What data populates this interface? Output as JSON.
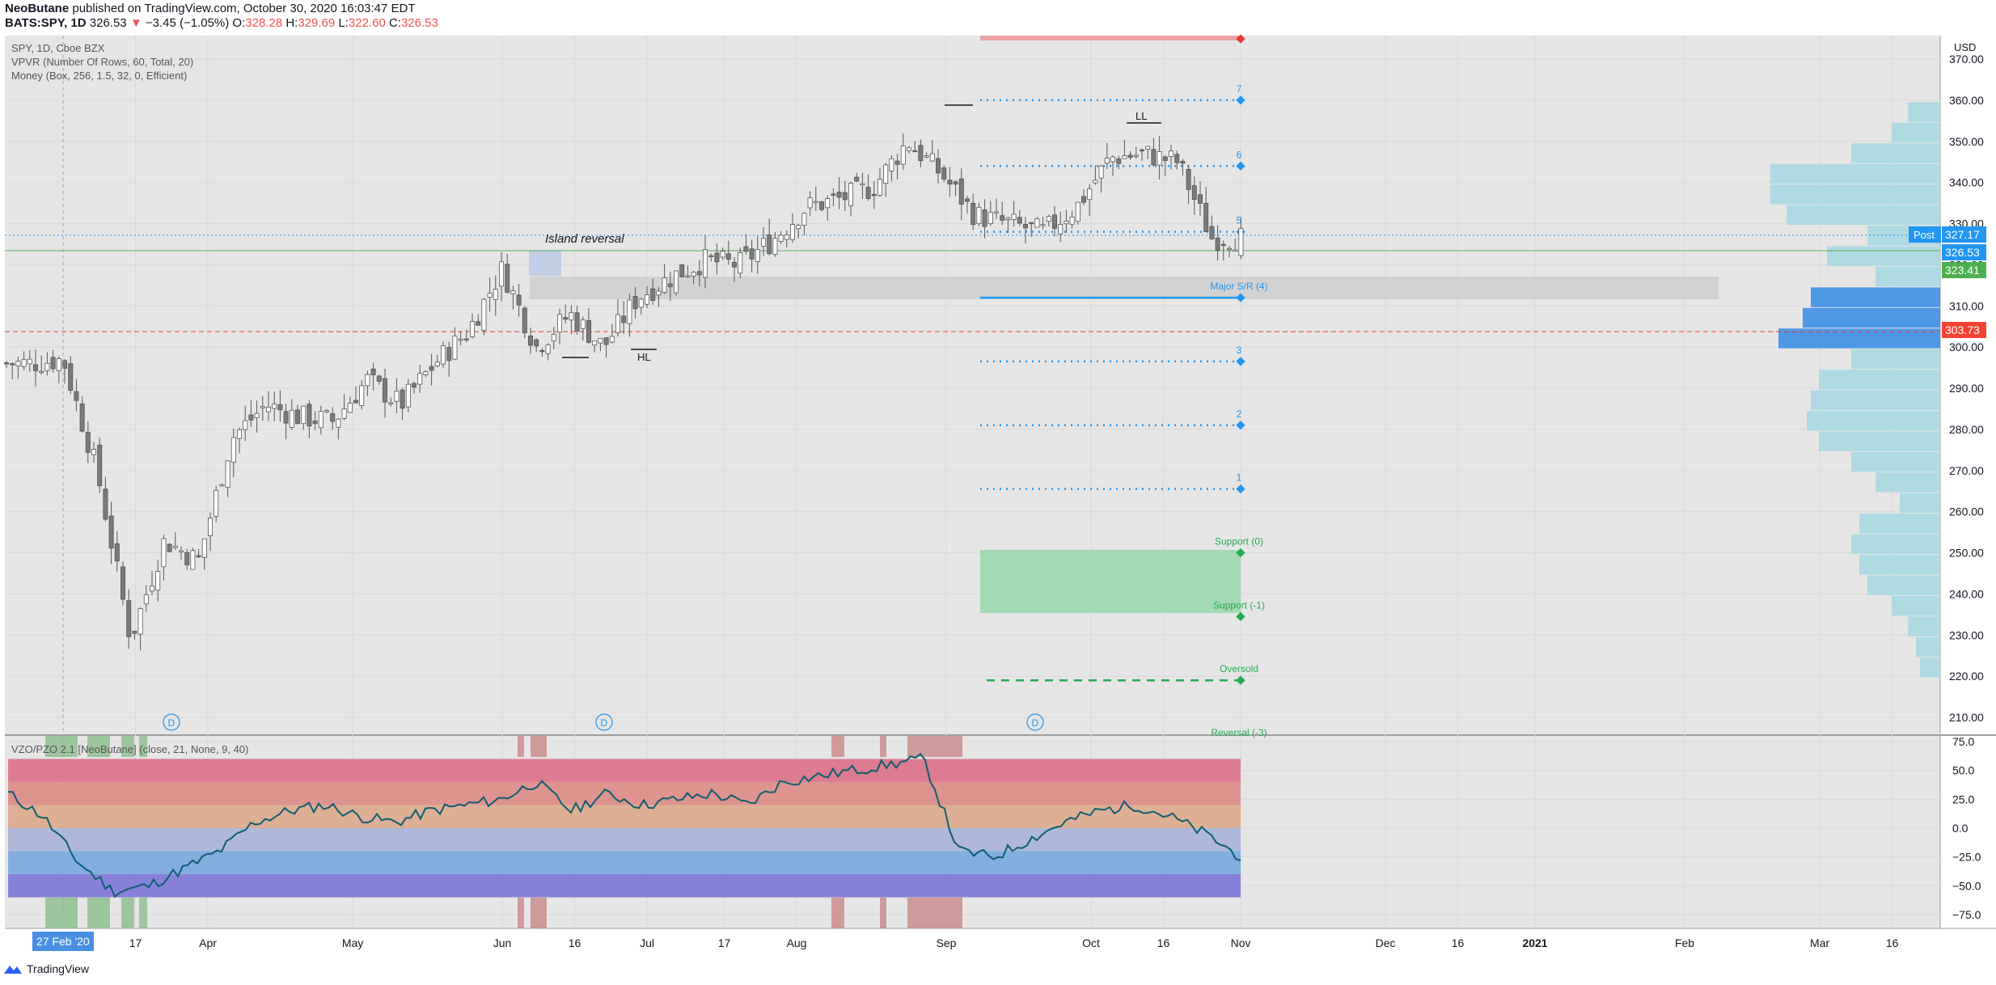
{
  "header": {
    "publisher": "NeoButane",
    "published_text": "published on TradingView.com, October 30, 2020 16:03:47 EDT",
    "symbol": "BATS:SPY, 1D",
    "last": "326.53",
    "change": "−3.45 (−1.05%)",
    "o_label": "O:",
    "o_value": "328.28",
    "h_label": "H:",
    "h_value": "329.69",
    "l_label": "L:",
    "l_value": "322.60",
    "c_label": "C:",
    "c_value": "326.53"
  },
  "legend": {
    "line1": "SPY, 1D, Cboe BZX",
    "line2": "VPVR (Number Of Rows, 60, Total, 20)",
    "line3": "Money (Box, 256, 1.5, 32, 0, Efficient)",
    "osc": "VZO/PZO 2.1 [NeoButane] (close, 21, None, 9, 40)"
  },
  "price_axis": {
    "currency": "USD",
    "ticks": [
      "370.00",
      "360.00",
      "350.00",
      "340.00",
      "330.00",
      "320.00",
      "310.00",
      "300.00",
      "290.00",
      "280.00",
      "270.00",
      "260.00",
      "250.00",
      "240.00",
      "230.00",
      "220.00",
      "210.00"
    ]
  },
  "osc_axis": {
    "ticks": [
      "75.0",
      "50.0",
      "25.0",
      "0.0",
      "−25.0",
      "−50.0",
      "−75.0"
    ]
  },
  "time_axis": {
    "labels": [
      "Mar",
      "17",
      "Apr",
      "May",
      "Jun",
      "16",
      "Jul",
      "17",
      "Aug",
      "Sep",
      "Oct",
      "16",
      "Nov",
      "Dec",
      "16",
      "2021",
      "Feb",
      "Mar",
      "16"
    ],
    "cursor_label": "27 Feb '20"
  },
  "price_labels": {
    "post_label": "Post",
    "post_value": "327.17",
    "last_value": "326.53",
    "support_value": "323.41",
    "red_value": "303.73"
  },
  "annotations": {
    "island": "Island reversal",
    "ll": "LL",
    "hl": "HL",
    "major_sr": "Major S/R (4)",
    "support0": "Support (0)",
    "support_m1": "Support (-1)",
    "oversold": "Oversold",
    "reversal": "Reversal (-3)",
    "level_numbers": [
      "7",
      "6",
      "5",
      "3",
      "2",
      "1"
    ],
    "dividend_marks": [
      "D",
      "D",
      "D"
    ]
  },
  "colors": {
    "up_candle": "#ffffff",
    "down_candle": "#7a7a7a",
    "wick": "#555555",
    "blue_level": "#2196f3",
    "green_zone": "#9fd8b0",
    "green_text": "#22ab4f",
    "red_line": "#e53935",
    "vpvr": "#a8d8e2",
    "vpvr_hv": "#3d8fe6",
    "osc_line": "#0e5e6f",
    "plot_bg": "#e6e6e6"
  },
  "chart_data": {
    "type": "candlestick",
    "title": "SPY, 1D, Cboe BZX",
    "yunit": "USD",
    "ylim": [
      205,
      375
    ],
    "x_labels": [
      "Mar",
      "17",
      "Apr",
      "May",
      "Jun",
      "16",
      "Jul",
      "17",
      "Aug",
      "Sep",
      "Oct",
      "16",
      "Nov"
    ],
    "closes_weekly_approx": [
      {
        "d": "2020-02-24",
        "c": 296
      },
      {
        "d": "2020-03-02",
        "c": 297
      },
      {
        "d": "2020-03-09",
        "c": 270
      },
      {
        "d": "2020-03-16",
        "c": 229
      },
      {
        "d": "2020-03-23",
        "c": 253
      },
      {
        "d": "2020-03-30",
        "c": 248
      },
      {
        "d": "2020-04-06",
        "c": 278
      },
      {
        "d": "2020-04-13",
        "c": 286
      },
      {
        "d": "2020-04-20",
        "c": 283
      },
      {
        "d": "2020-04-27",
        "c": 282
      },
      {
        "d": "2020-05-04",
        "c": 292
      },
      {
        "d": "2020-05-11",
        "c": 286
      },
      {
        "d": "2020-05-18",
        "c": 296
      },
      {
        "d": "2020-05-25",
        "c": 304
      },
      {
        "d": "2020-06-01",
        "c": 319
      },
      {
        "d": "2020-06-08",
        "c": 300
      },
      {
        "d": "2020-06-15",
        "c": 308
      },
      {
        "d": "2020-06-22",
        "c": 300
      },
      {
        "d": "2020-06-29",
        "c": 312
      },
      {
        "d": "2020-07-06",
        "c": 317
      },
      {
        "d": "2020-07-13",
        "c": 321
      },
      {
        "d": "2020-07-20",
        "c": 320
      },
      {
        "d": "2020-07-27",
        "c": 326
      },
      {
        "d": "2020-08-03",
        "c": 334
      },
      {
        "d": "2020-08-10",
        "c": 336
      },
      {
        "d": "2020-08-17",
        "c": 339
      },
      {
        "d": "2020-08-24",
        "c": 350
      },
      {
        "d": "2020-08-31",
        "c": 342
      },
      {
        "d": "2020-09-07",
        "c": 332
      },
      {
        "d": "2020-09-14",
        "c": 330
      },
      {
        "d": "2020-09-21",
        "c": 328
      },
      {
        "d": "2020-09-28",
        "c": 334
      },
      {
        "d": "2020-10-05",
        "c": 346
      },
      {
        "d": "2020-10-12",
        "c": 347
      },
      {
        "d": "2020-10-19",
        "c": 345
      },
      {
        "d": "2020-10-26",
        "c": 326.53
      }
    ],
    "levels": [
      {
        "label": "7",
        "price": 360
      },
      {
        "label": "6",
        "price": 344
      },
      {
        "label": "5",
        "price": 328
      },
      {
        "label": "Major S/R (4)",
        "price": 312
      },
      {
        "label": "3",
        "price": 296.5
      },
      {
        "label": "2",
        "price": 281
      },
      {
        "label": "1",
        "price": 265.5
      },
      {
        "label": "Support (0)",
        "price": 250
      },
      {
        "label": "Support (-1)",
        "price": 234.5
      },
      {
        "label": "Oversold",
        "price": 219
      },
      {
        "label": "Reversal (-3)",
        "price": 203.5
      }
    ],
    "horizontal_lines": [
      {
        "name": "support line",
        "price": 323.41
      },
      {
        "name": "red level",
        "price": 303.73
      },
      {
        "name": "post market",
        "price": 327.17
      }
    ],
    "oscillator": {
      "name": "VZO/PZO 2.1",
      "ylim": [
        -80,
        80
      ],
      "values_weekly_approx": [
        30,
        10,
        -30,
        -55,
        -50,
        -35,
        -20,
        5,
        15,
        20,
        10,
        5,
        15,
        20,
        25,
        40,
        15,
        30,
        20,
        25,
        30,
        20,
        40,
        45,
        50,
        55,
        60,
        -20,
        -25,
        -10,
        5,
        15,
        20,
        10,
        -5,
        -25
      ]
    }
  }
}
